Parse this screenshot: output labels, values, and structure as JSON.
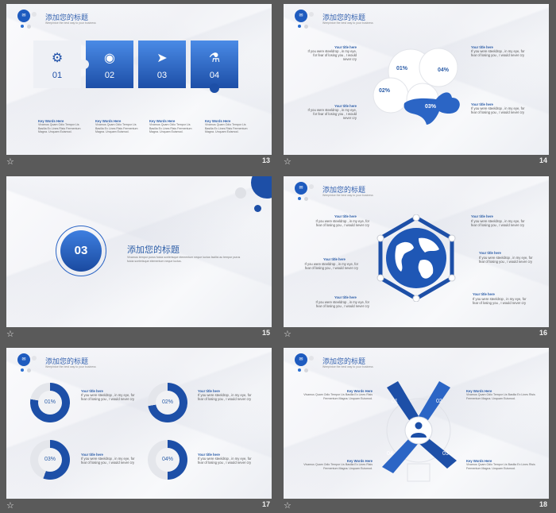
{
  "header": {
    "title": "添加您的标题",
    "subtitle": "Weepintoe the best way to your business"
  },
  "slide13": {
    "number": "13",
    "pieces": [
      {
        "num": "01",
        "icon": "gear-icon",
        "glyph": "⚙"
      },
      {
        "num": "02",
        "icon": "eye-icon",
        "glyph": "◉"
      },
      {
        "num": "03",
        "icon": "paper-plane-icon",
        "glyph": "➤"
      },
      {
        "num": "04",
        "icon": "microscope-icon",
        "glyph": "⚗"
      }
    ],
    "captions": [
      {
        "title": "Key Words Here",
        "body": "Vivamus Quam Odio Tempor Lis Basilia Ex Lines Risis Fermentum Magna. Unquam Euismod."
      },
      {
        "title": "Key Words Here",
        "body": "Vivamus Quam Odio Tempor Lis Basilia Ex Lines Risis Fermentum Magna. Unquam Euismod."
      },
      {
        "title": "Key Words Here",
        "body": "Vivamus Quam Odio Tempor Lis Basilia Ex Lines Risis Fermentum Magna. Unquam Euismod."
      },
      {
        "title": "Key Words Here",
        "body": "Vivamus Quam Odio Tempor Lis Basilia Ex Lines Risis Fermentum Magna. Unquam Euismod."
      }
    ]
  },
  "slide14": {
    "number": "14",
    "labels": [
      "01%",
      "02%",
      "03%",
      "04%"
    ],
    "items": [
      {
        "title": "Your title here",
        "body": "If you were steeldrop , in my eye, for fear of losing you , I would never cry"
      },
      {
        "title": "Your title here",
        "body": "If you were steeldrop , in my eye, for fear of losing you , I would never cry"
      },
      {
        "title": "Your title here",
        "body": "If you were steeldrop , in my eye, for fear of losing you , I would never cry"
      },
      {
        "title": "Your title here",
        "body": "If you were steeldrop , in my eye, for fear of losing you , I would never cry"
      }
    ]
  },
  "slide15": {
    "number": "15",
    "section_num": "03",
    "title": "添加您的标题",
    "body": "Vivamus tempor purus fuicia scelerisque elementum neque luctus facilisi ac tempor purus fuicia scelerisque elementum neque luctus."
  },
  "slide16": {
    "number": "16",
    "items": [
      {
        "title": "Your title here",
        "body": "If you were steeldrop , in my eye, for fear of losing you , I would never cry"
      },
      {
        "title": "Your title here",
        "body": "If you were steeldrop , in my eye, for fear of losing you , I would never cry"
      },
      {
        "title": "Your title here",
        "body": "If you were steeldrop , in my eye, for fear of losing you , I would never cry"
      },
      {
        "title": "Your title here",
        "body": "If you were steeldrop , in my eye, for fear of losing you , I would never cry"
      },
      {
        "title": "Your title here",
        "body": "If you were steeldrop , in my eye, for fear of losing you , I would never cry"
      },
      {
        "title": "Your title here",
        "body": "If you were steeldrop , in my eye, for fear of losing you , I would never cry"
      }
    ]
  },
  "slide17": {
    "number": "17",
    "donuts": [
      {
        "label": "01%",
        "title": "Your title here",
        "body": "If you were steeldrop , in my eye, for fear of losing you , I would never cry"
      },
      {
        "label": "02%",
        "title": "Your title here",
        "body": "If you were steeldrop , in my eye, for fear of losing you , I would never cry"
      },
      {
        "label": "03%",
        "title": "Your title here",
        "body": "If you were steeldrop , in my eye, for fear of losing you , I would never cry"
      },
      {
        "label": "04%",
        "title": "Your title here",
        "body": "If you were steeldrop , in my eye, for fear of losing you , I would never cry"
      }
    ]
  },
  "slide18": {
    "number": "18",
    "labels": [
      "01",
      "02",
      "03",
      "04"
    ],
    "items": [
      {
        "title": "Key Words Here",
        "body": "Vivamus Quam Odio Tempor Lis Basilia Ex Lines Risis Fermentum Magna. Unquam Euismod."
      },
      {
        "title": "Key Words Here",
        "body": "Vivamus Quam Odio Tempor Lis Basilia Ex Lines Risis Fermentum Magna. Unquam Euismod."
      },
      {
        "title": "Key Words Here",
        "body": "Vivamus Quam Odio Tempor Lis Basilia Ex Lines Risis Fermentum Magna. Unquam Euismod."
      },
      {
        "title": "Key Words Here",
        "body": "Vivamus Quam Odio Tempor Lis Basilia Ex Lines Risis Fermentum Magna. Unquam Euismod."
      }
    ]
  },
  "footer_icon": "star-icon",
  "colors": {
    "blue_dark": "#1d4fa7",
    "blue_light": "#4a8be6",
    "bg": "#5a5a5a"
  }
}
